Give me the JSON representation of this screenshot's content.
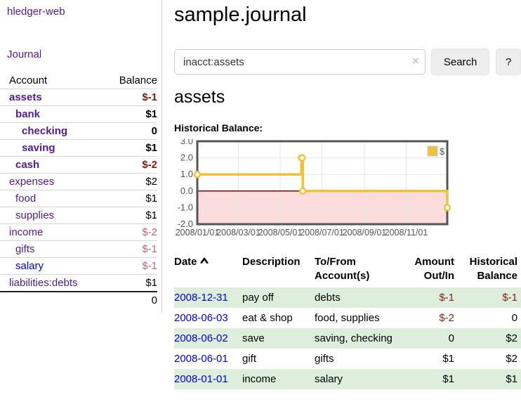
{
  "app": {
    "title": "hledger-web"
  },
  "sidebar": {
    "journal_link": "Journal",
    "accounts": {
      "header_account": "Account",
      "header_balance": "Balance",
      "rows": [
        {
          "name": "assets",
          "balance": "$-1",
          "indent": 1,
          "bold": true,
          "name_color": "purple",
          "balance_color": "negative"
        },
        {
          "name": "bank",
          "balance": "$1",
          "indent": 2,
          "bold": true,
          "name_color": "purple",
          "balance_color": "normal"
        },
        {
          "name": "checking",
          "balance": "0",
          "indent": 3,
          "bold": true,
          "name_color": "purple",
          "balance_color": "normal"
        },
        {
          "name": "saving",
          "balance": "$1",
          "indent": 3,
          "bold": true,
          "name_color": "purple",
          "balance_color": "normal"
        },
        {
          "name": "cash",
          "balance": "$-2",
          "indent": 2,
          "bold": true,
          "name_color": "purple",
          "balance_color": "negative"
        },
        {
          "name": "expenses",
          "balance": "$2",
          "indent": 1,
          "bold": false,
          "name_color": "purple",
          "balance_color": "normal"
        },
        {
          "name": "food",
          "balance": "$1",
          "indent": 2,
          "bold": false,
          "name_color": "purple",
          "balance_color": "normal"
        },
        {
          "name": "supplies",
          "balance": "$1",
          "indent": 2,
          "bold": false,
          "name_color": "purple",
          "balance_color": "normal"
        },
        {
          "name": "income",
          "balance": "$-2",
          "indent": 1,
          "bold": false,
          "name_color": "purple",
          "balance_color": "negative-light"
        },
        {
          "name": "gifts",
          "balance": "$-1",
          "indent": 2,
          "bold": false,
          "name_color": "purple",
          "balance_color": "negative-light"
        },
        {
          "name": "salary",
          "balance": "$-1",
          "indent": 2,
          "bold": false,
          "name_color": "blue",
          "balance_color": "negative-light"
        },
        {
          "name": "liabilities:debts",
          "balance": "$1",
          "indent": 1,
          "bold": false,
          "name_color": "purple",
          "balance_color": "normal"
        }
      ],
      "total": "0"
    }
  },
  "header": {
    "title": "sample.journal"
  },
  "search": {
    "value": "inacct:assets",
    "clear_icon": "×",
    "search_button": "Search",
    "help_button": "?"
  },
  "account_view": {
    "heading": "assets",
    "chart_title": "Historical Balance:"
  },
  "chart_data": {
    "type": "line",
    "step": true,
    "title": "Historical Balance:",
    "series": [
      {
        "name": "$",
        "x": [
          "2008-01-01",
          "2008-06-01",
          "2008-06-02",
          "2008-06-03",
          "2008-12-31"
        ],
        "values": [
          1,
          2,
          2,
          0,
          -1
        ]
      }
    ],
    "xlim": [
      "2008-01-01",
      "2008-12-31"
    ],
    "ylim": [
      -2,
      3
    ],
    "ytick_labels": [
      "3.0",
      "2.0",
      "1.0",
      "0.0",
      "-1.0",
      "-2.0"
    ],
    "yticks": [
      3,
      2,
      1,
      0,
      -1,
      -2
    ],
    "xtick_labels": [
      "2008/01/01",
      "2008/03/01",
      "2008/05/01",
      "2008/07/01",
      "2008/09/01",
      "2008/11/01"
    ],
    "grid": true,
    "legend_position": "top-right",
    "line_color": "#edc240",
    "negative_region_fill": "#fcdcdc",
    "zero_line_color": "#8f0000",
    "grid_color": "#e6e6e6",
    "border_color": "#545454",
    "tick_label_color": "#545454"
  },
  "register": {
    "headers": {
      "date": "Date",
      "description": "Description",
      "accounts": "To/From Account(s)",
      "amount": "Amount Out/In",
      "balance": "Historical Balance"
    },
    "rows": [
      {
        "date": "2008-12-31",
        "description": "pay off",
        "accounts": "debts",
        "amount": "$-1",
        "balance": "$-1",
        "amount_color": "negative",
        "balance_color": "negative"
      },
      {
        "date": "2008-06-03",
        "description": "eat & shop",
        "accounts": "food, supplies",
        "amount": "$-2",
        "balance": "0",
        "amount_color": "negative",
        "balance_color": "normal"
      },
      {
        "date": "2008-06-02",
        "description": "save",
        "accounts": "saving, checking",
        "amount": "0",
        "balance": "$2",
        "amount_color": "normal",
        "balance_color": "normal"
      },
      {
        "date": "2008-06-01",
        "description": "gift",
        "accounts": "gifts",
        "amount": "$1",
        "balance": "$2",
        "amount_color": "normal",
        "balance_color": "normal"
      },
      {
        "date": "2008-01-01",
        "description": "income",
        "accounts": "salary",
        "amount": "$1",
        "balance": "$1",
        "amount_color": "normal",
        "balance_color": "normal"
      }
    ]
  }
}
